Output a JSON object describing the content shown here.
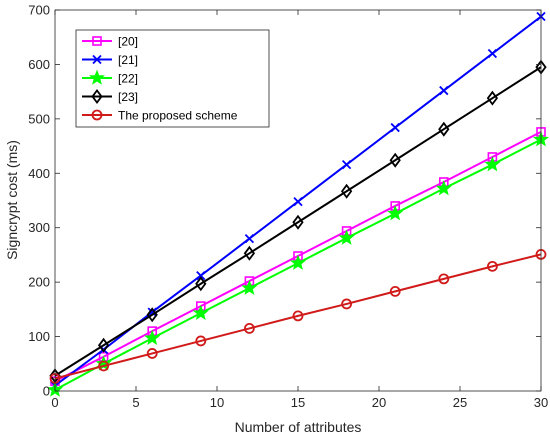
{
  "chart_data": {
    "type": "line",
    "title": "",
    "xlabel": "Number of attributes",
    "ylabel": "Signcrypt cost (ms)",
    "xlim": [
      0,
      30
    ],
    "ylim": [
      0,
      700
    ],
    "xticks": [
      0,
      5,
      10,
      15,
      20,
      25,
      30
    ],
    "yticks": [
      0,
      100,
      200,
      300,
      400,
      500,
      600,
      700
    ],
    "grid": false,
    "legend_position": "top-left",
    "x": [
      0,
      3,
      6,
      9,
      12,
      15,
      18,
      21,
      24,
      27,
      30
    ],
    "series": [
      {
        "name": "[20]",
        "color": "#ff00ff",
        "marker": "square",
        "values": [
          18,
          63,
          110,
          156,
          202,
          248,
          294,
          340,
          384,
          430,
          476
        ]
      },
      {
        "name": "[21]",
        "color": "#0000ff",
        "marker": "x",
        "values": [
          10,
          76,
          145,
          212,
          280,
          348,
          416,
          484,
          552,
          620,
          688
        ]
      },
      {
        "name": "[22]",
        "color": "#00ff00",
        "marker": "star",
        "values": [
          2,
          50,
          97,
          143,
          189,
          235,
          281,
          326,
          372,
          416,
          462
        ]
      },
      {
        "name": "[23]",
        "color": "#000000",
        "marker": "diamond",
        "values": [
          28,
          84,
          140,
          197,
          253,
          310,
          367,
          424,
          481,
          538,
          595
        ]
      },
      {
        "name": "The proposed scheme",
        "color": "#d11a1a",
        "marker": "circle",
        "values": [
          23,
          46,
          69,
          92,
          115,
          138,
          160,
          183,
          206,
          229,
          251
        ]
      }
    ]
  }
}
